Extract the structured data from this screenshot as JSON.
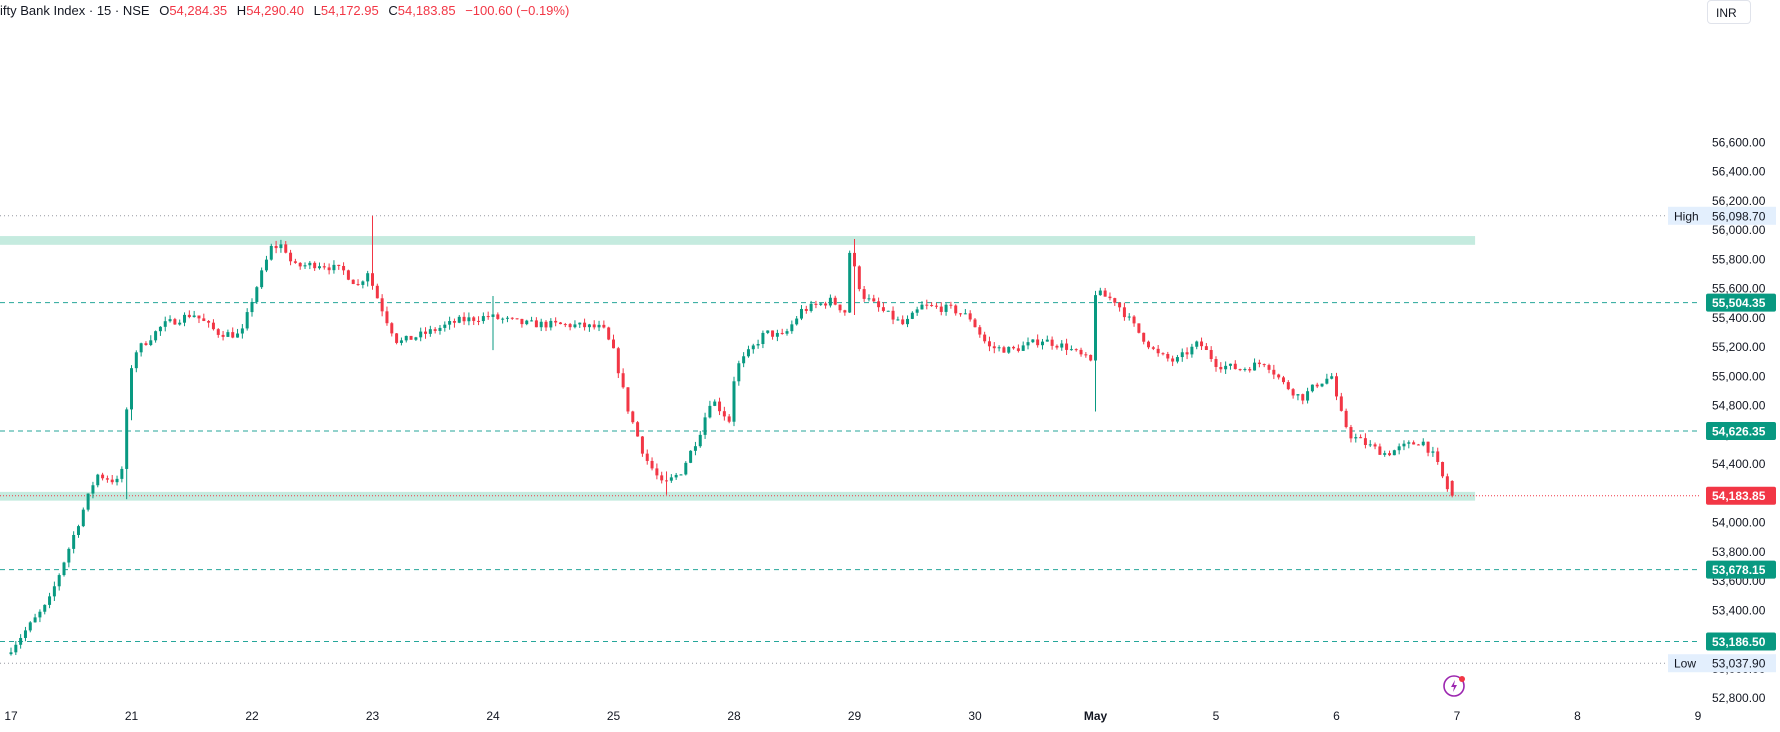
{
  "header": {
    "symbol": "ifty Bank Index · 15 · NSE",
    "open_label": "O",
    "open": "54,284.35",
    "high_label": "H",
    "high": "54,290.40",
    "low_label": "L",
    "low": "54,172.95",
    "close_label": "C",
    "close": "54,183.85",
    "change": "−100.60 (−0.19%)"
  },
  "currency": "INR",
  "colors": {
    "up": "#089981",
    "down": "#f23645",
    "zone": "#bfe9dc",
    "level": "#26a69a",
    "lowhigh_bg": "#e3effd"
  },
  "chart_data": {
    "type": "candlestick",
    "title": "",
    "ylim": [
      52700,
      56800
    ],
    "y_ticks": [
      52800,
      53000,
      53200,
      53400,
      53600,
      53800,
      54000,
      54200,
      54400,
      54600,
      54800,
      55000,
      55200,
      55400,
      55600,
      55800,
      56000,
      56200,
      56400,
      56600
    ],
    "y_tick_labels": [
      "52,800.00",
      "53,000.00",
      "53,200.00",
      "53,400.00",
      "53,600.00",
      "53,800.00",
      "54,000.00",
      "54,200.00",
      "54,400.00",
      "54,600.00",
      "54,800.00",
      "55,000.00",
      "55,200.00",
      "55,400.00",
      "55,600.00",
      "55,800.00",
      "56,000.00",
      "56,200.00",
      "56,400.00",
      "56,600.00"
    ],
    "x_ticks": [
      {
        "t": 0.0,
        "label": "17",
        "bold": false
      },
      {
        "t": 1.0,
        "label": "21",
        "bold": false
      },
      {
        "t": 2.0,
        "label": "22",
        "bold": false
      },
      {
        "t": 3.0,
        "label": "23",
        "bold": false
      },
      {
        "t": 4.0,
        "label": "24",
        "bold": false
      },
      {
        "t": 5.0,
        "label": "25",
        "bold": false
      },
      {
        "t": 6.0,
        "label": "28",
        "bold": false
      },
      {
        "t": 7.0,
        "label": "29",
        "bold": false
      },
      {
        "t": 8.0,
        "label": "30",
        "bold": false
      },
      {
        "t": 9.0,
        "label": "May",
        "bold": true
      },
      {
        "t": 10.0,
        "label": "5",
        "bold": false
      },
      {
        "t": 11.0,
        "label": "6",
        "bold": false
      },
      {
        "t": 12.0,
        "label": "7",
        "bold": false
      },
      {
        "t": 13.0,
        "label": "8",
        "bold": false
      },
      {
        "t": 14.0,
        "label": "9",
        "bold": false
      }
    ],
    "candles_per_day": 25,
    "x_unit": "trading days from 17",
    "price_path": [
      [
        0.0,
        53100
      ],
      [
        0.35,
        53450
      ],
      [
        0.6,
        54000
      ],
      [
        0.75,
        54330
      ],
      [
        0.95,
        54270
      ],
      [
        1.0,
        54750
      ],
      [
        1.05,
        55150
      ],
      [
        1.3,
        55350
      ],
      [
        1.55,
        55430
      ],
      [
        1.75,
        55300
      ],
      [
        1.95,
        55280
      ],
      [
        2.05,
        55550
      ],
      [
        2.2,
        55880
      ],
      [
        2.3,
        55900
      ],
      [
        2.38,
        55750
      ],
      [
        2.6,
        55770
      ],
      [
        2.8,
        55720
      ],
      [
        2.92,
        55620
      ],
      [
        3.0,
        55720
      ],
      [
        3.05,
        55600
      ],
      [
        3.15,
        55400
      ],
      [
        3.25,
        55230
      ],
      [
        3.5,
        55300
      ],
      [
        3.75,
        55380
      ],
      [
        4.0,
        55410
      ],
      [
        4.3,
        55360
      ],
      [
        4.7,
        55350
      ],
      [
        4.95,
        55330
      ],
      [
        5.05,
        55150
      ],
      [
        5.15,
        54800
      ],
      [
        5.3,
        54450
      ],
      [
        5.45,
        54250
      ],
      [
        5.6,
        54350
      ],
      [
        5.75,
        54600
      ],
      [
        5.85,
        54850
      ],
      [
        6.0,
        54700
      ],
      [
        6.05,
        55050
      ],
      [
        6.3,
        55300
      ],
      [
        6.45,
        55270
      ],
      [
        6.6,
        55450
      ],
      [
        6.85,
        55520
      ],
      [
        6.98,
        55430
      ],
      [
        7.0,
        55850
      ],
      [
        7.1,
        55560
      ],
      [
        7.25,
        55460
      ],
      [
        7.45,
        55350
      ],
      [
        7.6,
        55480
      ],
      [
        7.85,
        55460
      ],
      [
        8.0,
        55400
      ],
      [
        8.15,
        55200
      ],
      [
        8.35,
        55180
      ],
      [
        8.6,
        55250
      ],
      [
        8.8,
        55200
      ],
      [
        9.0,
        55100
      ],
      [
        9.02,
        55580
      ],
      [
        9.2,
        55520
      ],
      [
        9.4,
        55300
      ],
      [
        9.55,
        55150
      ],
      [
        9.7,
        55100
      ],
      [
        9.9,
        55230
      ],
      [
        10.05,
        55080
      ],
      [
        10.25,
        55050
      ],
      [
        10.45,
        55100
      ],
      [
        10.6,
        54950
      ],
      [
        10.75,
        54850
      ],
      [
        10.88,
        54950
      ],
      [
        11.0,
        55000
      ],
      [
        11.05,
        54800
      ],
      [
        11.15,
        54600
      ],
      [
        11.3,
        54530
      ],
      [
        11.45,
        54470
      ],
      [
        11.6,
        54520
      ],
      [
        11.75,
        54560
      ],
      [
        11.85,
        54450
      ],
      [
        11.97,
        54210
      ]
    ],
    "special_wicks": [
      {
        "t": 0.95,
        "high": 54400,
        "low": 54160
      },
      {
        "t": 1.0,
        "high": 54900,
        "low": 54700
      },
      {
        "t": 3.0,
        "high": 56098.7,
        "low": 55650
      },
      {
        "t": 5.45,
        "high": 54350,
        "low": 54190
      },
      {
        "t": 7.0,
        "high": 55940,
        "low": 55420
      },
      {
        "t": 9.0,
        "high": 55150,
        "low": 54760
      },
      {
        "t": 4.0,
        "high": 55550,
        "low": 55180
      }
    ],
    "last_candle": {
      "open": 54284.35,
      "high": 54290.4,
      "low": 54172.95,
      "close": 54183.85
    },
    "zones": [
      {
        "from": 55900,
        "to": 55960,
        "t0": -0.82,
        "t1": 12.15
      },
      {
        "from": 54150,
        "to": 54210,
        "t0": -0.82,
        "t1": 12.15
      }
    ],
    "levels": [
      {
        "price": 55504.35,
        "label": "55,504.35",
        "style": "dashed",
        "color": "#26a69a",
        "tag_bg": "#089981"
      },
      {
        "price": 54626.35,
        "label": "54,626.35",
        "style": "dashed",
        "color": "#26a69a",
        "tag_bg": "#089981"
      },
      {
        "price": 53678.15,
        "label": "53,678.15",
        "style": "dashed",
        "color": "#26a69a",
        "tag_bg": "#089981"
      },
      {
        "price": 53186.5,
        "label": "53,186.50",
        "style": "dashed",
        "color": "#26a69a",
        "tag_bg": "#089981"
      }
    ],
    "last_price": {
      "price": 54183.85,
      "label": "54,183.85",
      "color": "#f23645"
    },
    "high": {
      "price": 56098.7,
      "label": "56,098.70",
      "tag": "High"
    },
    "low": {
      "price": 53037.9,
      "label": "53,037.90",
      "tag": "Low"
    }
  }
}
